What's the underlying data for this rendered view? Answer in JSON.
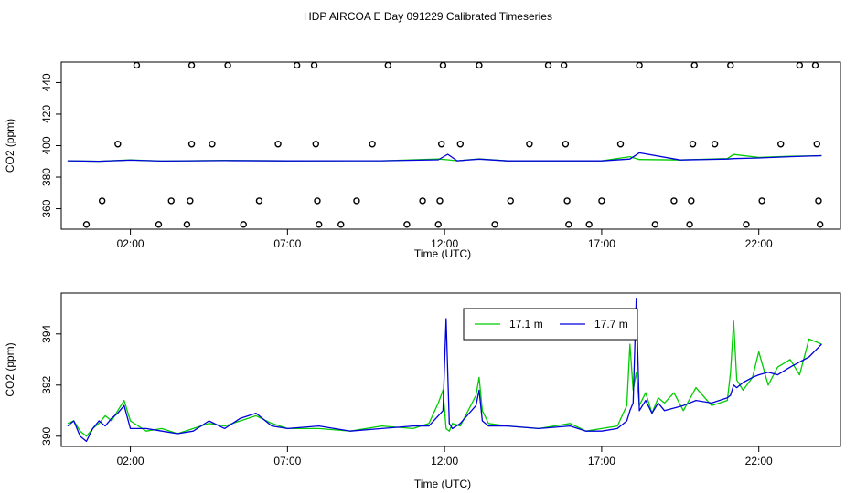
{
  "title": "HDP AIRCOA E  Day 091229  Calibrated Timeseries",
  "colors": {
    "green": "#00cc00",
    "blue": "#0000dd",
    "axis": "#000000"
  },
  "chart_data": [
    {
      "type": "scatter",
      "xlabel": "Time (UTC)",
      "ylabel": "CO2 (ppm)",
      "xlim_hours": [
        -0.2,
        24.6
      ],
      "ylim": [
        347,
        453
      ],
      "xticks": [
        {
          "h": 2,
          "label": "02:00"
        },
        {
          "h": 7,
          "label": "07:00"
        },
        {
          "h": 12,
          "label": "12:00"
        },
        {
          "h": 17,
          "label": "17:00"
        },
        {
          "h": 22,
          "label": "22:00"
        }
      ],
      "yticks": [
        360,
        380,
        400,
        420,
        440
      ],
      "reference_points": [
        {
          "h": 0.6,
          "y": 350
        },
        {
          "h": 1.1,
          "y": 365
        },
        {
          "h": 1.6,
          "y": 401
        },
        {
          "h": 2.2,
          "y": 451
        },
        {
          "h": 2.9,
          "y": 350
        },
        {
          "h": 3.3,
          "y": 365
        },
        {
          "h": 3.8,
          "y": 350
        },
        {
          "h": 3.9,
          "y": 365
        },
        {
          "h": 3.95,
          "y": 401
        },
        {
          "h": 3.95,
          "y": 451
        },
        {
          "h": 4.6,
          "y": 401
        },
        {
          "h": 5.1,
          "y": 451
        },
        {
          "h": 5.6,
          "y": 350
        },
        {
          "h": 6.1,
          "y": 365
        },
        {
          "h": 6.7,
          "y": 401
        },
        {
          "h": 7.3,
          "y": 451
        },
        {
          "h": 7.85,
          "y": 451
        },
        {
          "h": 7.9,
          "y": 401
        },
        {
          "h": 7.95,
          "y": 365
        },
        {
          "h": 8.0,
          "y": 350
        },
        {
          "h": 8.7,
          "y": 350
        },
        {
          "h": 9.2,
          "y": 365
        },
        {
          "h": 9.7,
          "y": 401
        },
        {
          "h": 10.2,
          "y": 451
        },
        {
          "h": 10.8,
          "y": 350
        },
        {
          "h": 11.3,
          "y": 365
        },
        {
          "h": 11.8,
          "y": 350
        },
        {
          "h": 11.85,
          "y": 365
        },
        {
          "h": 11.9,
          "y": 401
        },
        {
          "h": 11.95,
          "y": 451
        },
        {
          "h": 12.5,
          "y": 401
        },
        {
          "h": 13.1,
          "y": 451
        },
        {
          "h": 13.6,
          "y": 350
        },
        {
          "h": 14.1,
          "y": 365
        },
        {
          "h": 14.7,
          "y": 401
        },
        {
          "h": 15.3,
          "y": 451
        },
        {
          "h": 15.8,
          "y": 451
        },
        {
          "h": 15.85,
          "y": 401
        },
        {
          "h": 15.9,
          "y": 365
        },
        {
          "h": 15.95,
          "y": 350
        },
        {
          "h": 16.6,
          "y": 350
        },
        {
          "h": 17.0,
          "y": 365
        },
        {
          "h": 17.6,
          "y": 401
        },
        {
          "h": 18.2,
          "y": 451
        },
        {
          "h": 18.7,
          "y": 350
        },
        {
          "h": 19.3,
          "y": 365
        },
        {
          "h": 19.8,
          "y": 350
        },
        {
          "h": 19.85,
          "y": 365
        },
        {
          "h": 19.9,
          "y": 401
        },
        {
          "h": 19.95,
          "y": 451
        },
        {
          "h": 20.6,
          "y": 401
        },
        {
          "h": 21.1,
          "y": 451
        },
        {
          "h": 21.6,
          "y": 350
        },
        {
          "h": 22.1,
          "y": 365
        },
        {
          "h": 22.7,
          "y": 401
        },
        {
          "h": 23.3,
          "y": 451
        },
        {
          "h": 23.8,
          "y": 451
        },
        {
          "h": 23.85,
          "y": 401
        },
        {
          "h": 23.9,
          "y": 365
        },
        {
          "h": 23.95,
          "y": 350
        }
      ],
      "series": [
        {
          "name": "17.1 m",
          "color": "#00cc00",
          "x_hours": [
            0.0,
            1.0,
            2.0,
            3.0,
            5.0,
            7.0,
            10.0,
            11.8,
            12.1,
            12.4,
            13.1,
            14.0,
            17.0,
            17.9,
            18.2,
            19.5,
            21.0,
            21.2,
            22.0,
            23.0,
            24.0
          ],
          "y": [
            390.4,
            390.1,
            390.9,
            390.2,
            390.6,
            390.3,
            390.4,
            391.5,
            391.0,
            390.4,
            391.6,
            390.3,
            390.3,
            393.0,
            391.2,
            390.9,
            391.8,
            394.4,
            392.5,
            393.3,
            393.6
          ]
        },
        {
          "name": "17.7 m",
          "color": "#0000dd",
          "x_hours": [
            0.0,
            1.0,
            2.0,
            3.0,
            5.0,
            7.0,
            10.0,
            11.8,
            12.1,
            12.4,
            13.1,
            14.0,
            17.0,
            17.9,
            18.2,
            19.5,
            21.0,
            21.2,
            22.0,
            23.0,
            24.0
          ],
          "y": [
            390.4,
            390.1,
            390.8,
            390.2,
            390.5,
            390.3,
            390.4,
            391.0,
            394.5,
            390.4,
            391.4,
            390.3,
            390.3,
            391.5,
            395.4,
            390.9,
            391.5,
            391.8,
            392.2,
            393.0,
            393.6
          ]
        }
      ]
    },
    {
      "type": "line",
      "xlabel": "Time (UTC)",
      "ylabel": "CO2 (ppm)",
      "xlim_hours": [
        -0.2,
        24.6
      ],
      "ylim": [
        389.6,
        395.6
      ],
      "xticks": [
        {
          "h": 2,
          "label": "02:00"
        },
        {
          "h": 7,
          "label": "07:00"
        },
        {
          "h": 12,
          "label": "12:00"
        },
        {
          "h": 17,
          "label": "17:00"
        },
        {
          "h": 22,
          "label": "22:00"
        }
      ],
      "yticks": [
        390,
        392,
        394
      ],
      "legend": [
        {
          "label": "17.1 m",
          "color": "#00cc00"
        },
        {
          "label": "17.7 m",
          "color": "#0000dd"
        }
      ],
      "legend_position": "top-right",
      "series": [
        {
          "name": "17.1 m",
          "color": "#00cc00",
          "x_hours": [
            0.0,
            0.2,
            0.4,
            0.6,
            0.8,
            1.0,
            1.2,
            1.4,
            1.6,
            1.8,
            2.0,
            2.5,
            3.0,
            3.5,
            4.0,
            4.5,
            5.0,
            5.5,
            6.0,
            6.5,
            7.0,
            8.0,
            9.0,
            10.0,
            11.0,
            11.5,
            11.8,
            11.95,
            12.05,
            12.15,
            12.25,
            12.5,
            13.0,
            13.1,
            13.2,
            13.4,
            14.0,
            15.0,
            16.0,
            16.5,
            17.0,
            17.5,
            17.8,
            17.9,
            18.0,
            18.1,
            18.2,
            18.4,
            18.6,
            18.8,
            19.0,
            19.3,
            19.6,
            20.0,
            20.5,
            21.0,
            21.1,
            21.2,
            21.3,
            21.5,
            21.8,
            22.0,
            22.3,
            22.6,
            23.0,
            23.3,
            23.6,
            24.0
          ],
          "y": [
            390.5,
            390.6,
            390.2,
            390.0,
            390.3,
            390.5,
            390.8,
            390.6,
            391.0,
            391.4,
            390.6,
            390.2,
            390.3,
            390.1,
            390.3,
            390.5,
            390.4,
            390.6,
            390.8,
            390.5,
            390.3,
            390.3,
            390.2,
            390.4,
            390.3,
            390.5,
            391.3,
            391.8,
            390.3,
            390.2,
            390.5,
            390.4,
            391.6,
            392.3,
            391.0,
            390.5,
            390.4,
            390.3,
            390.5,
            390.2,
            390.3,
            390.4,
            391.2,
            393.6,
            391.8,
            392.5,
            391.2,
            391.7,
            390.9,
            391.5,
            391.3,
            391.7,
            391.0,
            391.9,
            391.2,
            391.4,
            392.5,
            394.5,
            392.2,
            391.8,
            392.3,
            393.3,
            392.0,
            392.7,
            393.0,
            392.4,
            393.8,
            393.6
          ]
        },
        {
          "name": "17.7 m",
          "color": "#0000dd",
          "x_hours": [
            0.0,
            0.2,
            0.4,
            0.6,
            0.8,
            1.0,
            1.2,
            1.4,
            1.6,
            1.8,
            2.0,
            2.5,
            3.0,
            3.5,
            4.0,
            4.5,
            5.0,
            5.5,
            6.0,
            6.5,
            7.0,
            8.0,
            9.0,
            10.0,
            11.0,
            11.5,
            11.8,
            11.95,
            12.05,
            12.15,
            12.25,
            12.5,
            13.0,
            13.1,
            13.2,
            13.4,
            14.0,
            15.0,
            16.0,
            16.5,
            17.0,
            17.5,
            17.8,
            17.9,
            18.0,
            18.1,
            18.2,
            18.4,
            18.6,
            18.8,
            19.0,
            19.3,
            19.6,
            20.0,
            20.5,
            21.0,
            21.1,
            21.2,
            21.3,
            21.5,
            21.8,
            22.0,
            22.3,
            22.6,
            23.0,
            23.3,
            23.6,
            24.0
          ],
          "y": [
            390.4,
            390.6,
            390.0,
            389.8,
            390.3,
            390.6,
            390.4,
            390.7,
            390.9,
            391.2,
            390.3,
            390.3,
            390.2,
            390.1,
            390.2,
            390.6,
            390.3,
            390.7,
            390.9,
            390.4,
            390.3,
            390.4,
            390.2,
            390.3,
            390.4,
            390.4,
            390.8,
            391.0,
            394.6,
            390.5,
            390.3,
            390.5,
            391.2,
            391.8,
            390.6,
            390.4,
            390.4,
            390.3,
            390.4,
            390.2,
            390.2,
            390.3,
            390.6,
            391.0,
            391.3,
            395.4,
            391.0,
            391.4,
            390.9,
            391.3,
            391.0,
            391.1,
            391.2,
            391.4,
            391.3,
            391.5,
            391.6,
            392.0,
            391.9,
            392.1,
            392.3,
            392.4,
            392.5,
            392.4,
            392.7,
            392.9,
            393.1,
            393.6
          ]
        }
      ]
    }
  ]
}
